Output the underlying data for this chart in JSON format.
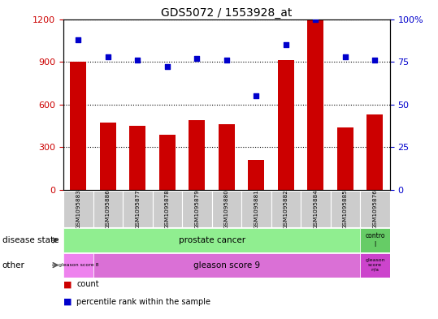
{
  "title": "GDS5072 / 1553928_at",
  "samples": [
    "GSM1095883",
    "GSM1095886",
    "GSM1095877",
    "GSM1095878",
    "GSM1095879",
    "GSM1095880",
    "GSM1095881",
    "GSM1095882",
    "GSM1095884",
    "GSM1095885",
    "GSM1095876"
  ],
  "counts": [
    900,
    470,
    450,
    390,
    490,
    460,
    210,
    910,
    1190,
    440,
    530
  ],
  "percentiles": [
    88,
    78,
    76,
    72,
    77,
    76,
    55,
    85,
    100,
    78,
    76
  ],
  "ylim_left": [
    0,
    1200
  ],
  "ylim_right": [
    0,
    100
  ],
  "yticks_left": [
    0,
    300,
    600,
    900,
    1200
  ],
  "yticks_right": [
    0,
    25,
    50,
    75,
    100
  ],
  "bar_color": "#cc0000",
  "dot_color": "#0000cc",
  "bar_width": 0.55,
  "color_prostate": "#90ee90",
  "color_control": "#66cc66",
  "color_gleason8": "#ee82ee",
  "color_gleason9": "#da70d6",
  "color_gleason_na": "#cc44cc",
  "color_tick_bg": "#cccccc",
  "left_axis_color": "#cc0000",
  "right_axis_color": "#0000cc",
  "bg_color": "#ffffff"
}
